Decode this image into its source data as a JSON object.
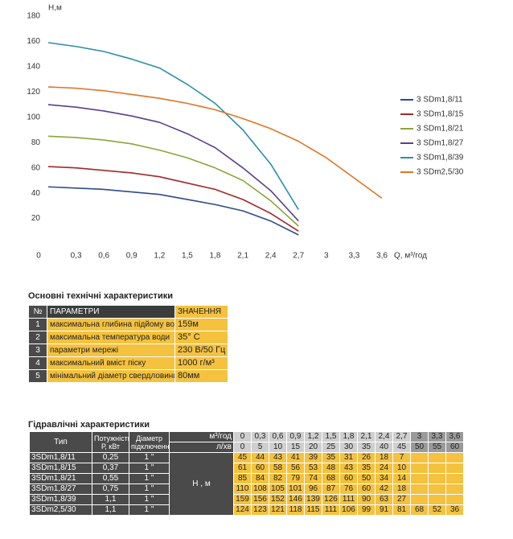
{
  "chart_data": {
    "type": "line",
    "ylabel": "H,м",
    "xlabel": "Q, м³/год",
    "x": [
      0,
      0.3,
      0.6,
      0.9,
      1.2,
      1.5,
      1.8,
      2.1,
      2.4,
      2.7,
      3,
      3.3,
      3.6
    ],
    "xlim": [
      0,
      3.6
    ],
    "xticks": [
      0,
      {
        "value": 0.3,
        "label": "0,3"
      },
      {
        "value": 0.6,
        "label": "0,6"
      },
      {
        "value": 0.9,
        "label": "0,9"
      },
      {
        "value": 1.2,
        "label": "1,2"
      },
      {
        "value": 1.5,
        "label": "1,5"
      },
      {
        "value": 1.8,
        "label": "1,8"
      },
      {
        "value": 2.1,
        "label": "2,1"
      },
      {
        "value": 2.4,
        "label": "2,4"
      },
      {
        "value": 2.7,
        "label": "2,7"
      },
      3,
      {
        "value": 3.3,
        "label": "3,3"
      },
      {
        "value": 3.6,
        "label": "3,6"
      }
    ],
    "ylim": [
      0,
      180
    ],
    "yticks": [
      20,
      40,
      60,
      80,
      100,
      120,
      140,
      160,
      180
    ],
    "series": [
      {
        "name": "3 SDm1,8/11",
        "color": "#2e4a8c",
        "values": [
          45,
          44,
          43,
          41,
          39,
          35,
          31,
          26,
          18,
          7,
          null,
          null,
          null
        ]
      },
      {
        "name": "3 SDm1,8/15",
        "color": "#a0282a",
        "values": [
          61,
          60,
          58,
          56,
          53,
          48,
          43,
          35,
          24,
          10,
          null,
          null,
          null
        ]
      },
      {
        "name": "3 SDm1,8/21",
        "color": "#8aa63a",
        "values": [
          85,
          84,
          82,
          79,
          74,
          68,
          60,
          50,
          34,
          14,
          null,
          null,
          null
        ]
      },
      {
        "name": "3 SDm1,8/27",
        "color": "#5b3f8a",
        "values": [
          110,
          108,
          105,
          101,
          96,
          87,
          76,
          60,
          42,
          18,
          null,
          null,
          null
        ]
      },
      {
        "name": "3 SDm1,8/39",
        "color": "#2a8fa8",
        "values": [
          159,
          156,
          152,
          146,
          139,
          126,
          111,
          90,
          63,
          27,
          null,
          null,
          null
        ]
      },
      {
        "name": "3 SDm2,5/30",
        "color": "#e07424",
        "values": [
          124,
          123,
          121,
          118,
          115,
          111,
          106,
          99,
          91,
          81,
          68,
          52,
          36
        ]
      }
    ]
  },
  "specs": {
    "title": "Основні технічні характеристики",
    "header": [
      "№",
      "ПАРАМЕТРИ",
      "ЗНАЧЕННЯ"
    ],
    "rows": [
      [
        "1",
        "максимальна глибина підйому води",
        "159м"
      ],
      [
        "2",
        "максимальна температура води",
        "35° С"
      ],
      [
        "3",
        "параметри мережі",
        "230 В/50 Гц"
      ],
      [
        "4",
        "максимальний вміст піску",
        "1000 г/м³"
      ],
      [
        "5",
        "мінімальний діаметр свердловини",
        "80мм"
      ]
    ]
  },
  "hydraulic": {
    "title": "Гідравлічні характеристики",
    "type": "Тип",
    "power": "Потужність Р, кВт",
    "diameter": "Діаметр підключення",
    "q_unit": "м³/год",
    "l_unit": "л/хв",
    "h_unit": "Н , м",
    "q": [
      "0",
      "0,3",
      "0,6",
      "0,9",
      "1,2",
      "1,5",
      "1,8",
      "2,1",
      "2,4",
      "2,7",
      "3",
      "3,3",
      "3,6"
    ],
    "l": [
      "0",
      "5",
      "10",
      "15",
      "20",
      "25",
      "30",
      "35",
      "40",
      "45",
      "50",
      "55",
      "60"
    ],
    "rows": [
      {
        "type": "3SDm1,8/11",
        "power": "0,25",
        "diameter": "1 \"",
        "h": [
          "45",
          "44",
          "43",
          "41",
          "39",
          "35",
          "31",
          "26",
          "18",
          "7"
        ]
      },
      {
        "type": "3SDm1,8/15",
        "power": "0,37",
        "diameter": "1 \"",
        "h": [
          "61",
          "60",
          "58",
          "56",
          "53",
          "48",
          "43",
          "35",
          "24",
          "10"
        ]
      },
      {
        "type": "3SDm1,8/21",
        "power": "0,55",
        "diameter": "1 \"",
        "h": [
          "85",
          "84",
          "82",
          "79",
          "74",
          "68",
          "60",
          "50",
          "34",
          "14"
        ]
      },
      {
        "type": "3SDm1,8/27",
        "power": "0,75",
        "diameter": "1 \"",
        "h": [
          "110",
          "108",
          "105",
          "101",
          "96",
          "87",
          "76",
          "60",
          "42",
          "18"
        ]
      },
      {
        "type": "3SDm1,8/39",
        "power": "1,1",
        "diameter": "1 \"",
        "h": [
          "159",
          "156",
          "152",
          "146",
          "139",
          "126",
          "111",
          "90",
          "63",
          "27"
        ]
      },
      {
        "type": "3SDm2,5/30",
        "power": "1,1",
        "diameter": "1 \"",
        "h": [
          "124",
          "123",
          "121",
          "118",
          "115",
          "111",
          "106",
          "99",
          "91",
          "81",
          "68",
          "52",
          "36"
        ]
      }
    ]
  }
}
